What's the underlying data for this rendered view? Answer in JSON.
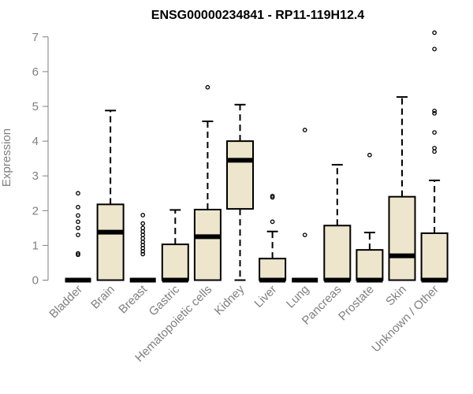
{
  "chart_data": {
    "type": "boxplot",
    "title": "ENSG00000234841 - RP11-119H12.4",
    "xlabel": "",
    "ylabel": "Expression",
    "ylim": [
      0,
      7.2
    ],
    "yticks": [
      0,
      1,
      2,
      3,
      4,
      5,
      6,
      7
    ],
    "box_color": "#ede6cc",
    "categories": [
      "Bladder",
      "Brain",
      "Breast",
      "Gastric",
      "Hematopoietic cells",
      "Kidney",
      "Liver",
      "Lung",
      "Pancreas",
      "Prostate",
      "Skin",
      "Unknown / Other"
    ],
    "boxes": [
      {
        "name": "Bladder",
        "q1": 0,
        "median": 0,
        "q3": 0,
        "whisker_low": 0,
        "whisker_high": 0,
        "outliers": [
          0.73,
          0.77,
          1.3,
          1.5,
          1.68,
          1.86,
          2.1,
          2.5
        ]
      },
      {
        "name": "Brain",
        "q1": 0,
        "median": 1.38,
        "q3": 2.18,
        "whisker_low": 0,
        "whisker_high": 4.88,
        "outliers": []
      },
      {
        "name": "Breast",
        "q1": 0,
        "median": 0,
        "q3": 0,
        "whisker_low": 0,
        "whisker_high": 0,
        "outliers": [
          0.75,
          0.83,
          0.92,
          1.01,
          1.1,
          1.2,
          1.3,
          1.4,
          1.5,
          1.63,
          1.87
        ]
      },
      {
        "name": "Gastric",
        "q1": 0,
        "median": 0,
        "q3": 1.03,
        "whisker_low": 0,
        "whisker_high": 2.02,
        "outliers": []
      },
      {
        "name": "Hematopoietic cells",
        "q1": 0,
        "median": 1.25,
        "q3": 2.03,
        "whisker_low": 0,
        "whisker_high": 4.57,
        "outliers": [
          5.55
        ]
      },
      {
        "name": "Kidney",
        "q1": 2.05,
        "median": 3.45,
        "q3": 4.0,
        "whisker_low": 0,
        "whisker_high": 5.05,
        "outliers": []
      },
      {
        "name": "Liver",
        "q1": 0,
        "median": 0,
        "q3": 0.62,
        "whisker_low": 0,
        "whisker_high": 1.4,
        "outliers": [
          1.68,
          2.38,
          2.42
        ]
      },
      {
        "name": "Lung",
        "q1": 0,
        "median": 0,
        "q3": 0,
        "whisker_low": 0,
        "whisker_high": 0,
        "outliers": [
          1.3,
          4.32
        ]
      },
      {
        "name": "Pancreas",
        "q1": 0,
        "median": 0,
        "q3": 1.57,
        "whisker_low": 0,
        "whisker_high": 3.32,
        "outliers": []
      },
      {
        "name": "Prostate",
        "q1": 0,
        "median": 0,
        "q3": 0.87,
        "whisker_low": 0,
        "whisker_high": 1.37,
        "outliers": [
          3.6
        ]
      },
      {
        "name": "Skin",
        "q1": 0,
        "median": 0.7,
        "q3": 2.4,
        "whisker_low": 0,
        "whisker_high": 5.27,
        "outliers": []
      },
      {
        "name": "Unknown / Other",
        "q1": 0,
        "median": 0,
        "q3": 1.35,
        "whisker_low": 0,
        "whisker_high": 2.87,
        "outliers": [
          3.7,
          3.8,
          4.25,
          4.8,
          4.87,
          6.65,
          7.12
        ]
      }
    ]
  }
}
